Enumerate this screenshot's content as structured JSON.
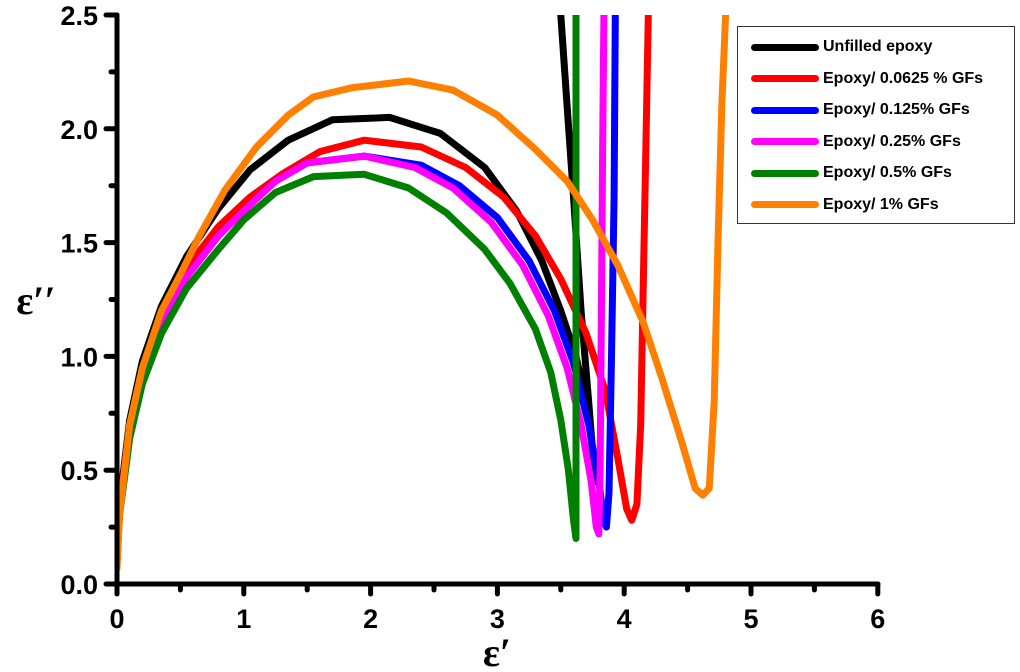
{
  "chart_data": {
    "type": "line",
    "title": "",
    "xlabel": "ε′",
    "ylabel": "ε′′",
    "xlim": [
      0,
      6
    ],
    "ylim": [
      0,
      2.5
    ],
    "x_ticks": [
      "0",
      "1",
      "2",
      "3",
      "4",
      "5",
      "6"
    ],
    "y_ticks": [
      "0.0",
      "0.5",
      "1.0",
      "1.5",
      "2.0",
      "2.5"
    ],
    "grid": false,
    "legend_position": "upper right",
    "series": [
      {
        "name": "Unfilled epoxy",
        "color": "#000000",
        "points": [
          [
            0,
            0.1
          ],
          [
            0.02,
            0.35
          ],
          [
            0.1,
            0.72
          ],
          [
            0.2,
            0.98
          ],
          [
            0.35,
            1.22
          ],
          [
            0.55,
            1.44
          ],
          [
            0.8,
            1.65
          ],
          [
            1.05,
            1.82
          ],
          [
            1.35,
            1.95
          ],
          [
            1.7,
            2.04
          ],
          [
            2.15,
            2.05
          ],
          [
            2.55,
            1.98
          ],
          [
            2.9,
            1.83
          ],
          [
            3.15,
            1.64
          ],
          [
            3.35,
            1.42
          ],
          [
            3.5,
            1.2
          ],
          [
            3.62,
            1.0
          ],
          [
            3.7,
            0.8
          ],
          [
            3.76,
            0.55
          ],
          [
            3.77,
            0.45
          ],
          [
            3.72,
            0.8
          ],
          [
            3.66,
            1.2
          ],
          [
            3.6,
            1.7
          ],
          [
            3.55,
            2.1
          ],
          [
            3.5,
            2.5
          ]
        ]
      },
      {
        "name": "Epoxy/ 0.0625 % GFs",
        "color": "#ff0000",
        "points": [
          [
            0,
            0.1
          ],
          [
            0.02,
            0.33
          ],
          [
            0.1,
            0.7
          ],
          [
            0.2,
            0.95
          ],
          [
            0.35,
            1.18
          ],
          [
            0.55,
            1.39
          ],
          [
            0.8,
            1.57
          ],
          [
            1.05,
            1.7
          ],
          [
            1.3,
            1.8
          ],
          [
            1.6,
            1.9
          ],
          [
            1.95,
            1.95
          ],
          [
            2.4,
            1.92
          ],
          [
            2.75,
            1.83
          ],
          [
            3.05,
            1.7
          ],
          [
            3.3,
            1.53
          ],
          [
            3.5,
            1.34
          ],
          [
            3.7,
            1.1
          ],
          [
            3.85,
            0.85
          ],
          [
            3.95,
            0.55
          ],
          [
            4.02,
            0.33
          ],
          [
            4.06,
            0.28
          ],
          [
            4.1,
            0.35
          ],
          [
            4.13,
            0.7
          ],
          [
            4.15,
            1.3
          ],
          [
            4.17,
            1.9
          ],
          [
            4.19,
            2.5
          ]
        ]
      },
      {
        "name": "Epoxy/ 0.125% GFs",
        "color": "#0000ff",
        "points": [
          [
            0,
            0.1
          ],
          [
            0.02,
            0.32
          ],
          [
            0.1,
            0.68
          ],
          [
            0.2,
            0.93
          ],
          [
            0.35,
            1.15
          ],
          [
            0.55,
            1.35
          ],
          [
            0.8,
            1.53
          ],
          [
            1.0,
            1.64
          ],
          [
            1.25,
            1.77
          ],
          [
            1.5,
            1.85
          ],
          [
            1.95,
            1.88
          ],
          [
            2.4,
            1.84
          ],
          [
            2.7,
            1.75
          ],
          [
            3.0,
            1.61
          ],
          [
            3.25,
            1.42
          ],
          [
            3.45,
            1.2
          ],
          [
            3.6,
            0.97
          ],
          [
            3.72,
            0.7
          ],
          [
            3.8,
            0.45
          ],
          [
            3.84,
            0.28
          ],
          [
            3.86,
            0.25
          ],
          [
            3.88,
            0.4
          ],
          [
            3.9,
            1.0
          ],
          [
            3.92,
            1.7
          ],
          [
            3.93,
            2.5
          ]
        ]
      },
      {
        "name": "Epoxy/ 0.25% GFs",
        "color": "#ff00ff",
        "points": [
          [
            0,
            0.1
          ],
          [
            0.02,
            0.32
          ],
          [
            0.1,
            0.68
          ],
          [
            0.2,
            0.93
          ],
          [
            0.35,
            1.15
          ],
          [
            0.55,
            1.35
          ],
          [
            0.8,
            1.53
          ],
          [
            1.0,
            1.64
          ],
          [
            1.25,
            1.77
          ],
          [
            1.5,
            1.85
          ],
          [
            1.95,
            1.88
          ],
          [
            2.35,
            1.83
          ],
          [
            2.65,
            1.74
          ],
          [
            2.95,
            1.59
          ],
          [
            3.2,
            1.4
          ],
          [
            3.4,
            1.18
          ],
          [
            3.55,
            0.95
          ],
          [
            3.66,
            0.7
          ],
          [
            3.74,
            0.45
          ],
          [
            3.78,
            0.25
          ],
          [
            3.8,
            0.22
          ],
          [
            3.81,
            0.5
          ],
          [
            3.82,
            1.2
          ],
          [
            3.83,
            1.9
          ],
          [
            3.84,
            2.5
          ]
        ]
      },
      {
        "name": "Epoxy/ 0.5% GFs",
        "color": "#008000",
        "points": [
          [
            0,
            0.1
          ],
          [
            0.02,
            0.3
          ],
          [
            0.1,
            0.64
          ],
          [
            0.2,
            0.88
          ],
          [
            0.35,
            1.1
          ],
          [
            0.55,
            1.3
          ],
          [
            0.8,
            1.47
          ],
          [
            1.0,
            1.6
          ],
          [
            1.25,
            1.72
          ],
          [
            1.55,
            1.79
          ],
          [
            1.95,
            1.8
          ],
          [
            2.3,
            1.74
          ],
          [
            2.6,
            1.63
          ],
          [
            2.9,
            1.47
          ],
          [
            3.1,
            1.32
          ],
          [
            3.3,
            1.12
          ],
          [
            3.42,
            0.93
          ],
          [
            3.5,
            0.72
          ],
          [
            3.56,
            0.5
          ],
          [
            3.6,
            0.28
          ],
          [
            3.62,
            0.2
          ],
          [
            3.62,
            0.6
          ],
          [
            3.62,
            1.3
          ],
          [
            3.62,
            2.0
          ],
          [
            3.62,
            2.5
          ]
        ]
      },
      {
        "name": "Epoxy/ 1% GFs",
        "color": "#ff8000",
        "points": [
          [
            0,
            0.07
          ],
          [
            0.02,
            0.3
          ],
          [
            0.1,
            0.7
          ],
          [
            0.2,
            0.95
          ],
          [
            0.35,
            1.2
          ],
          [
            0.5,
            1.36
          ],
          [
            0.65,
            1.53
          ],
          [
            0.85,
            1.73
          ],
          [
            1.1,
            1.92
          ],
          [
            1.35,
            2.06
          ],
          [
            1.55,
            2.14
          ],
          [
            1.85,
            2.18
          ],
          [
            2.3,
            2.21
          ],
          [
            2.65,
            2.17
          ],
          [
            3.0,
            2.06
          ],
          [
            3.3,
            1.91
          ],
          [
            3.55,
            1.77
          ],
          [
            3.75,
            1.6
          ],
          [
            3.95,
            1.4
          ],
          [
            4.15,
            1.15
          ],
          [
            4.3,
            0.9
          ],
          [
            4.45,
            0.63
          ],
          [
            4.56,
            0.42
          ],
          [
            4.62,
            0.39
          ],
          [
            4.67,
            0.42
          ],
          [
            4.71,
            0.8
          ],
          [
            4.74,
            1.5
          ],
          [
            4.77,
            2.1
          ],
          [
            4.8,
            2.5
          ]
        ]
      }
    ]
  }
}
